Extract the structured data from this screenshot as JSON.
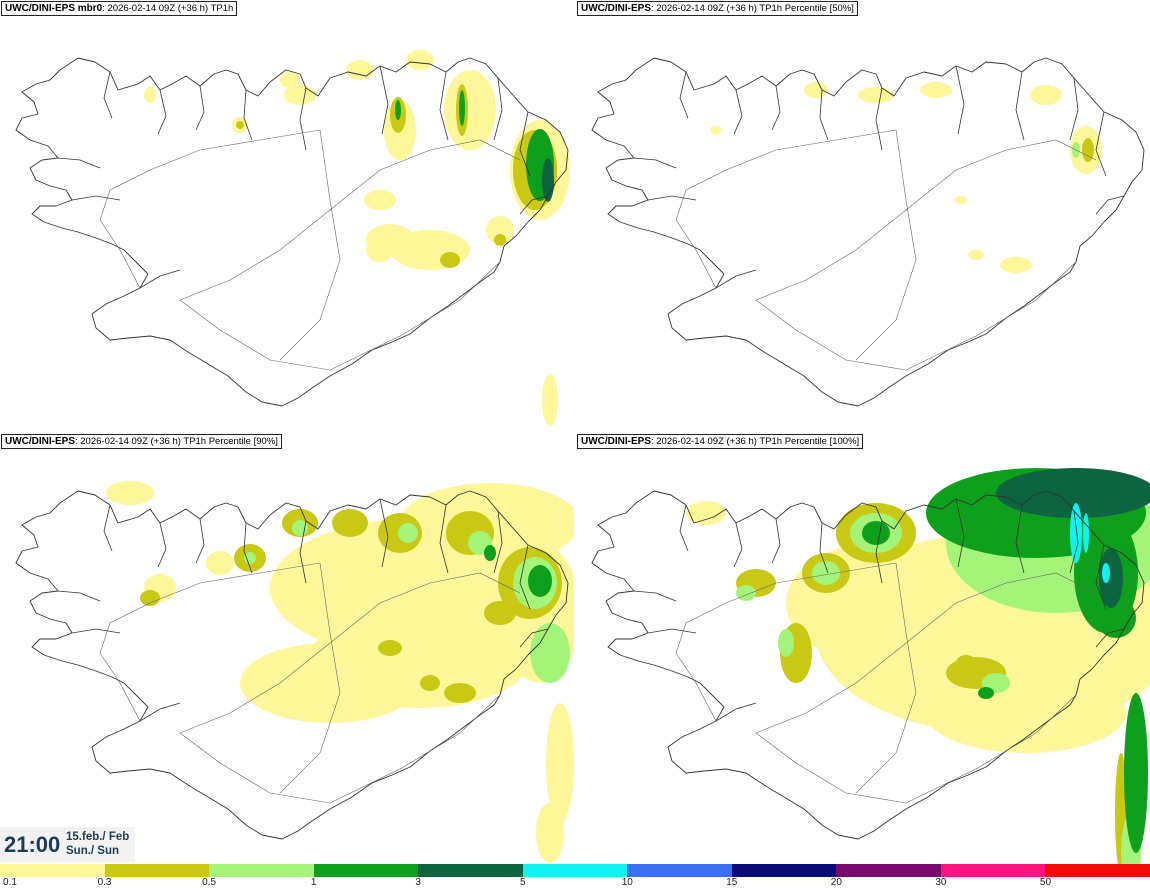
{
  "panels": [
    {
      "id": "tl",
      "model": "UWC/DINI-EPS mbr0",
      "run_info": ": 2026-02-14 09Z (+36 h)",
      "product": "TP1h",
      "intensity": "low"
    },
    {
      "id": "tr",
      "model": "UWC/DINI-EPS",
      "run_info": ": 2026-02-14 09Z (+36 h)",
      "product": "TP1h Percentile [50%]",
      "intensity": "lowest"
    },
    {
      "id": "bl",
      "model": "UWC/DINI-EPS",
      "run_info": ": 2026-02-14 09Z (+36 h)",
      "product": "TP1h Percentile [90%]",
      "intensity": "medium"
    },
    {
      "id": "br",
      "model": "UWC/DINI-EPS",
      "run_info": ": 2026-02-14 09Z (+36 h)",
      "product": "TP1h Percentile [100%]",
      "intensity": "high"
    }
  ],
  "valid_time": {
    "time": "21:00",
    "date_line1": "15.feb./ Feb",
    "date_line2": "Sun./ Sun"
  },
  "legend": {
    "colors": [
      "#fdf79a",
      "#c9c814",
      "#a4f47a",
      "#0ea01c",
      "#0c6440",
      "#10f2f2",
      "#3c6ef0",
      "#0c0c78",
      "#780a6e",
      "#fa147e",
      "#f50a0a"
    ],
    "labels": [
      "0.1",
      "0.3",
      "0.5",
      "1",
      "3",
      "5",
      "10",
      "15",
      "20",
      "30",
      "50"
    ]
  }
}
